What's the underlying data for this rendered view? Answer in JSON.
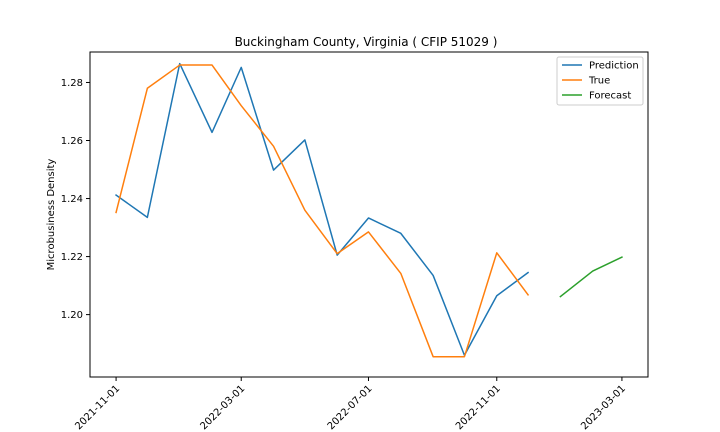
{
  "chart_data": {
    "type": "line",
    "title": "Buckingham County, Virginia ( CFIP 51029 )",
    "xlabel": "",
    "ylabel": "Microbusiness Density",
    "x_ticks": [
      "2021-11-01",
      "2022-03-01",
      "2022-07-01",
      "2022-11-01",
      "2023-03-01"
    ],
    "y_ticks": [
      "1.20",
      "1.22",
      "1.24",
      "1.26",
      "1.28"
    ],
    "ylim": [
      1.1785,
      1.2905
    ],
    "xlim": [
      "2021-10-07",
      "2023-03-26"
    ],
    "grid": false,
    "legend_position": "top-right",
    "series": [
      {
        "name": "Prediction",
        "color": "#1f77b4",
        "x": [
          "2021-11-01",
          "2021-12-01",
          "2022-01-01",
          "2022-02-01",
          "2022-03-01",
          "2022-04-01",
          "2022-05-01",
          "2022-06-01",
          "2022-07-01",
          "2022-08-01",
          "2022-09-01",
          "2022-10-01",
          "2022-11-01",
          "2022-12-01"
        ],
        "values": [
          1.2412,
          1.2335,
          1.2865,
          1.2628,
          1.2852,
          1.2498,
          1.2602,
          1.2205,
          1.2333,
          1.228,
          1.2135,
          1.186,
          1.2065,
          1.2145
        ]
      },
      {
        "name": "True",
        "color": "#ff7f0e",
        "x": [
          "2021-11-01",
          "2021-12-01",
          "2022-01-01",
          "2022-02-01",
          "2022-03-01",
          "2022-04-01",
          "2022-05-01",
          "2022-06-01",
          "2022-07-01",
          "2022-08-01",
          "2022-09-01",
          "2022-10-01",
          "2022-11-01",
          "2022-12-01"
        ],
        "values": [
          1.2352,
          1.278,
          1.286,
          1.286,
          1.272,
          1.258,
          1.236,
          1.221,
          1.2285,
          1.2142,
          1.1855,
          1.1855,
          1.2213,
          1.2068
        ]
      },
      {
        "name": "Forecast",
        "color": "#2ca02c",
        "x": [
          "2023-01-01",
          "2023-02-01",
          "2023-03-01"
        ],
        "values": [
          1.2062,
          1.215,
          1.2198
        ]
      }
    ]
  }
}
